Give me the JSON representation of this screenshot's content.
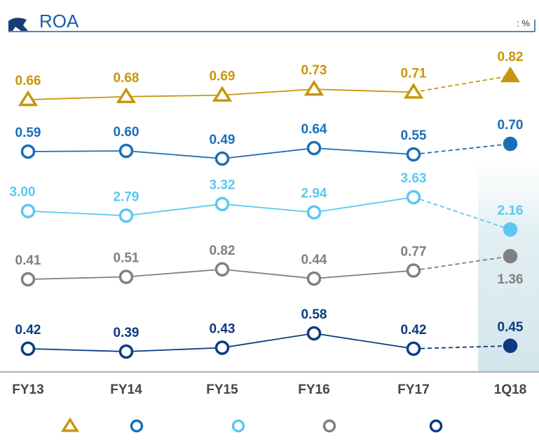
{
  "chart_data": {
    "type": "line",
    "title": "ROA",
    "unit": ": %",
    "categories": [
      "FY13",
      "FY14",
      "FY15",
      "FY16",
      "FY17",
      "1Q18"
    ],
    "series": [
      {
        "color": "#c8960c",
        "marker": "triangle",
        "values": [
          0.66,
          0.68,
          0.69,
          0.73,
          0.71,
          0.82
        ],
        "value_labels": [
          "0.66",
          "0.68",
          "0.69",
          "0.73",
          "0.71",
          "0.82"
        ]
      },
      {
        "color": "#1a6fb8",
        "marker": "circle",
        "values": [
          0.59,
          0.6,
          0.49,
          0.64,
          0.55,
          0.7
        ],
        "value_labels": [
          "0.59",
          "0.60",
          "0.49",
          "0.64",
          "0.55",
          "0.70"
        ]
      },
      {
        "color": "#5bc8f0",
        "marker": "circle",
        "values": [
          3.0,
          2.79,
          3.32,
          2.94,
          3.63,
          2.16
        ],
        "value_labels": [
          "3.00",
          "2.79",
          "3.32",
          "2.94",
          "3.63",
          "2.16"
        ]
      },
      {
        "color": "#808080",
        "marker": "circle",
        "values": [
          0.41,
          0.51,
          0.82,
          0.44,
          0.77,
          1.36
        ],
        "value_labels": [
          "0.41",
          "0.51",
          "0.82",
          "0.44",
          "0.77",
          "1.36"
        ]
      },
      {
        "color": "#0c3b82",
        "marker": "circle",
        "values": [
          0.42,
          0.39,
          0.43,
          0.58,
          0.42,
          0.45
        ],
        "value_labels": [
          "0.42",
          "0.39",
          "0.43",
          "0.58",
          "0.42",
          "0.45"
        ]
      }
    ]
  }
}
